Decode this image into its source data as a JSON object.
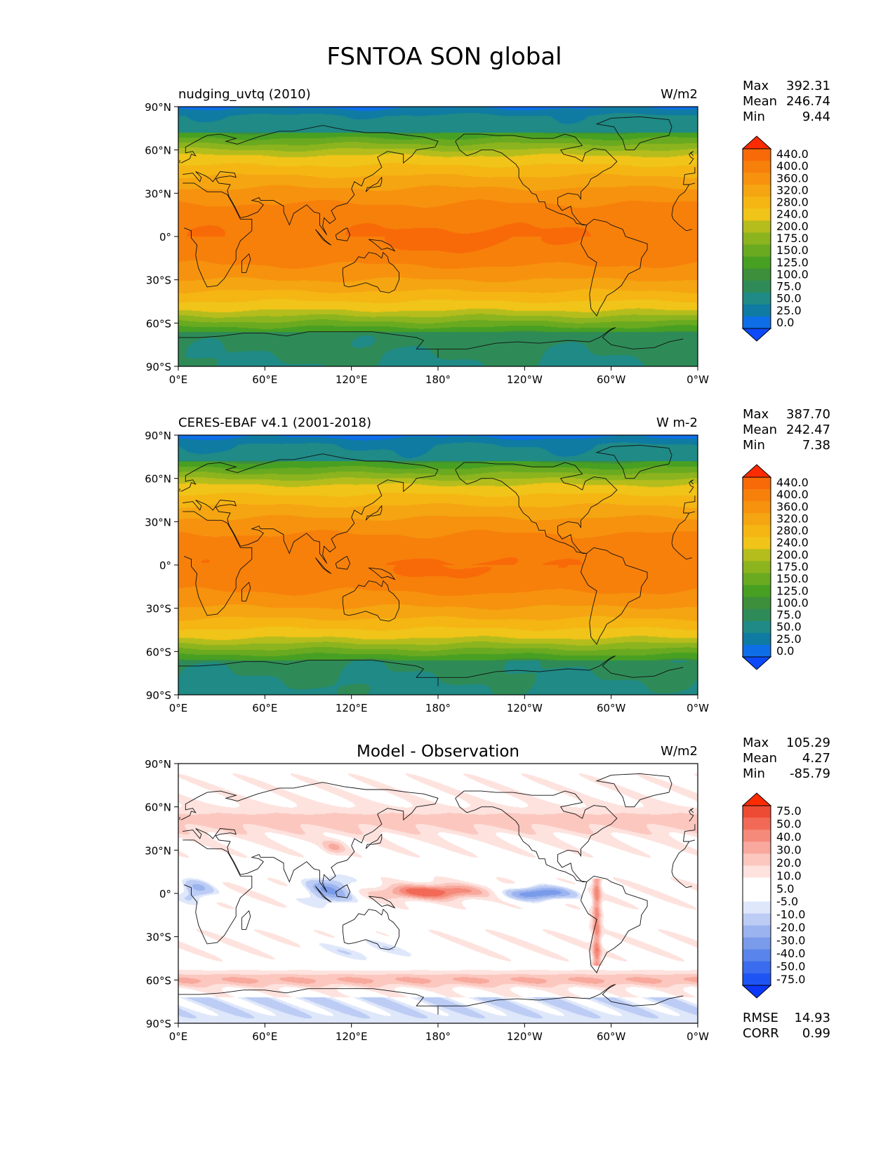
{
  "figure_title": "FSNTOA SON global",
  "axes": {
    "lat_ticks": [
      "90°N",
      "60°N",
      "30°N",
      "0°",
      "30°S",
      "60°S",
      "90°S"
    ],
    "lon_ticks": [
      "0°E",
      "60°E",
      "120°E",
      "180°",
      "120°W",
      "60°W",
      "0°W"
    ]
  },
  "colors": {
    "abs_levels": [
      "#0c49f8",
      "#0e6ee8",
      "#0f7ba3",
      "#1f8a86",
      "#2e8b57",
      "#3d8f3b",
      "#48a023",
      "#6aaa20",
      "#8cb41e",
      "#b4bd1c",
      "#f0c418",
      "#f5b614",
      "#f5a511",
      "#f7920e",
      "#f7800b",
      "#f86a08",
      "#ff2b00"
    ],
    "diff_levels": [
      "#0c38f8",
      "#1f54f4",
      "#3b6bee",
      "#5984ec",
      "#7a9bea",
      "#9bb3ee",
      "#bcccf4",
      "#dfe7fa",
      "#ffffff",
      "#ffffff",
      "#fde2de",
      "#fbc7bf",
      "#f8a89c",
      "#f58a7a",
      "#f26a57",
      "#ee4b34",
      "#ff2b00"
    ]
  },
  "chart_data": [
    {
      "type": "heatmap",
      "title": "nudging_uvtq (2010)",
      "units": "W/m2",
      "stats": [
        {
          "label": "Max",
          "value": "392.31"
        },
        {
          "label": "Mean",
          "value": "246.74"
        },
        {
          "label": "Min",
          "value": "9.44"
        }
      ],
      "colorbar_labels": [
        "0.0",
        "25.0",
        "50.0",
        "75.0",
        "100.0",
        "125.0",
        "150.0",
        "175.0",
        "200.0",
        "240.0",
        "280.0",
        "320.0",
        "360.0",
        "400.0",
        "440.0"
      ],
      "lat_range": [
        -90,
        90
      ],
      "lon_range": [
        0,
        360
      ]
    },
    {
      "type": "heatmap",
      "title": "CERES-EBAF v4.1 (2001-2018)",
      "units": "W m-2",
      "stats": [
        {
          "label": "Max",
          "value": "387.70"
        },
        {
          "label": "Mean",
          "value": "242.47"
        },
        {
          "label": "Min",
          "value": "7.38"
        }
      ],
      "colorbar_labels": [
        "0.0",
        "25.0",
        "50.0",
        "75.0",
        "100.0",
        "125.0",
        "150.0",
        "175.0",
        "200.0",
        "240.0",
        "280.0",
        "320.0",
        "360.0",
        "400.0",
        "440.0"
      ],
      "lat_range": [
        -90,
        90
      ],
      "lon_range": [
        0,
        360
      ]
    },
    {
      "type": "heatmap",
      "title": "Model - Observation",
      "units": "W/m2",
      "stats": [
        {
          "label": "Max",
          "value": "105.29"
        },
        {
          "label": "Mean",
          "value": "4.27"
        },
        {
          "label": "Min",
          "value": "-85.79"
        }
      ],
      "colorbar_labels": [
        "-75.0",
        "-50.0",
        "-40.0",
        "-30.0",
        "-20.0",
        "-10.0",
        "-5.0",
        "5.0",
        "10.0",
        "20.0",
        "30.0",
        "40.0",
        "50.0",
        "75.0"
      ],
      "extra_stats": [
        {
          "label": "RMSE",
          "value": "14.93"
        },
        {
          "label": "CORR",
          "value": "0.99"
        }
      ],
      "lat_range": [
        -90,
        90
      ],
      "lon_range": [
        0,
        360
      ]
    }
  ]
}
